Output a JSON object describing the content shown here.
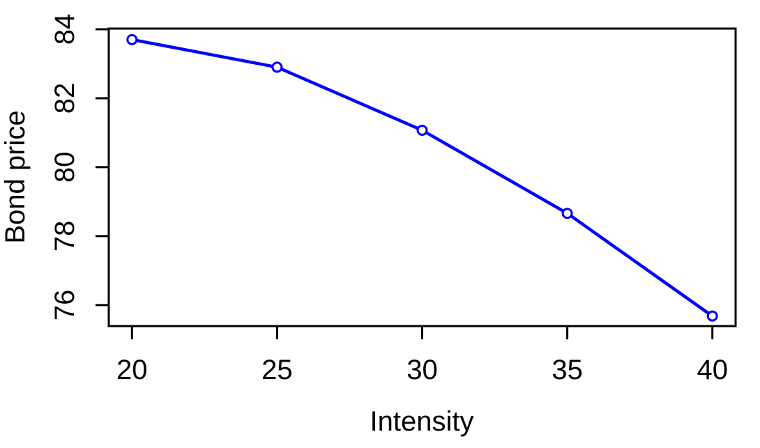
{
  "chart_data": {
    "type": "line",
    "title": "",
    "xlabel": "Intensity",
    "ylabel": "Bond price",
    "x": [
      20,
      25,
      30,
      35,
      40
    ],
    "y": [
      83.7,
      82.9,
      81.07,
      78.66,
      75.68
    ],
    "series": [
      {
        "name": "bond-price",
        "x": [
          20,
          25,
          30,
          35,
          40
        ],
        "values": [
          83.7,
          82.9,
          81.07,
          78.66,
          75.68
        ]
      }
    ],
    "xticks": [
      20,
      25,
      30,
      35,
      40
    ],
    "yticks": [
      76,
      78,
      80,
      82,
      84
    ],
    "xlim": [
      19.2,
      40.8
    ],
    "ylim": [
      75.39,
      84.02
    ],
    "grid": false,
    "legend_position": "none",
    "marker": "open-circle",
    "line_color": "#0000FF",
    "axis_color": "#000000",
    "text_color": "#000000",
    "background_color": "#FFFFFF"
  }
}
